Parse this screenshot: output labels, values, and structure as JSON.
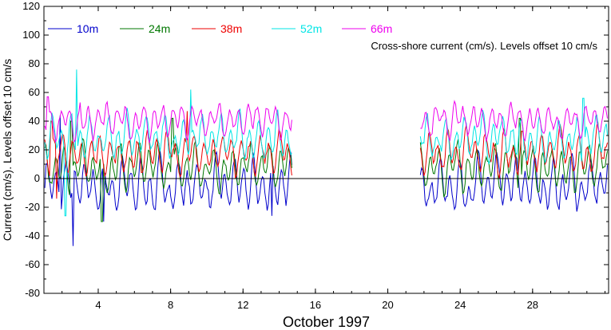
{
  "chart_data": {
    "type": "line",
    "annotation": "Cross-shore current (cm/s). Levels offset 10 cm/s",
    "xlabel": "October 1997",
    "ylabel": "Current (cm/s). Levels offset 10 cm/s",
    "xlim": [
      1,
      32.2
    ],
    "ylim": [
      -80,
      120
    ],
    "xticks": [
      4,
      8,
      12,
      16,
      20,
      24,
      28
    ],
    "yticks": [
      -80,
      -60,
      -40,
      -20,
      0,
      20,
      40,
      60,
      80,
      100,
      120
    ],
    "zero_line": 0,
    "legend_position": "top-left",
    "gap": [
      14.7,
      21.8
    ],
    "series": [
      {
        "name": "10m",
        "color": "#0000cc",
        "mean": -5,
        "amp": 12,
        "noise": 6,
        "peaks": [
          [
            1.9,
            44
          ],
          [
            2.6,
            -47
          ],
          [
            4.3,
            -30
          ],
          [
            13.6,
            -26
          ]
        ]
      },
      {
        "name": "24m",
        "color": "#007700",
        "mean": 8,
        "amp": 11,
        "noise": 5,
        "peaks": [
          [
            2.5,
            40
          ],
          [
            4.2,
            -30
          ],
          [
            8.1,
            42
          ],
          [
            27.3,
            42
          ]
        ]
      },
      {
        "name": "38m",
        "color": "#ee0000",
        "mean": 18,
        "amp": 10,
        "noise": 5,
        "peaks": [
          [
            1.4,
            40
          ],
          [
            1.7,
            -14
          ],
          [
            8.9,
            47
          ]
        ]
      },
      {
        "name": "52m",
        "color": "#00e5e5",
        "mean": 28,
        "amp": 10,
        "noise": 5,
        "peaks": [
          [
            2.8,
            76
          ],
          [
            2.2,
            -26
          ],
          [
            9.1,
            62
          ],
          [
            30.8,
            56
          ]
        ]
      },
      {
        "name": "66m",
        "color": "#ee00ee",
        "mean": 40,
        "amp": 8,
        "noise": 4,
        "peaks": [
          [
            1.2,
            57
          ],
          [
            3.0,
            53
          ]
        ]
      }
    ]
  }
}
